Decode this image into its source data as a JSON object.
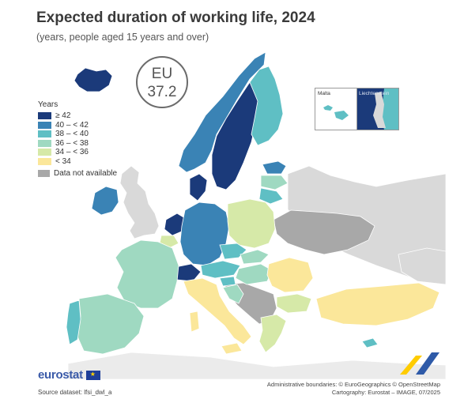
{
  "title": "Expected duration of working life, 2024",
  "subtitle": "(years, people aged 15 years and over)",
  "eu_badge": {
    "label": "EU",
    "value": "37.2"
  },
  "legend": {
    "title": "Years",
    "classes": [
      {
        "label": "≥ 42",
        "color": "#1b3a7a"
      },
      {
        "label": "40 – < 42",
        "color": "#3a83b5"
      },
      {
        "label": "38 – < 40",
        "color": "#5fbfc4"
      },
      {
        "label": "36 – < 38",
        "color": "#9fd9c1"
      },
      {
        "label": "34 – < 36",
        "color": "#d6e9a8"
      },
      {
        "label": "< 34",
        "color": "#fbe79a"
      }
    ],
    "not_available": {
      "label": "Data not available",
      "color": "#a8a8a8"
    }
  },
  "insets": {
    "malta": "Malta",
    "liechtenstein": "Liechtenstein"
  },
  "country_classes": {
    "Iceland": "≥ 42",
    "Norway": "40 – < 42",
    "Sweden": "≥ 42",
    "Finland": "38 – < 40",
    "Denmark": "≥ 42",
    "Netherlands": "≥ 42",
    "Switzerland": "≥ 42",
    "Liechtenstein": "≥ 42",
    "Germany": "40 – < 42",
    "Ireland": "40 – < 42",
    "Estonia": "40 – < 42",
    "Latvia": "36 – < 38",
    "Lithuania": "38 – < 40",
    "Austria": "38 – < 40",
    "Czechia": "38 – < 40",
    "Portugal": "38 – < 40",
    "Malta": "38 – < 40",
    "Slovenia": "38 – < 40",
    "France": "36 – < 38",
    "Spain": "36 – < 38",
    "Cyprus": "38 – < 40",
    "Slovakia": "36 – < 38",
    "Hungary": "36 – < 38",
    "Croatia": "36 – < 38",
    "Belgium": "34 – < 36",
    "Poland": "34 – < 36",
    "Bulgaria": "34 – < 36",
    "Greece": "34 – < 36",
    "Italy": "< 34",
    "Romania": "< 34",
    "Turkey": "< 34",
    "Luxembourg": "34 – < 36"
  },
  "logo": "eurostat",
  "source": "Source dataset: lfsi_dwl_a",
  "credits": [
    "Administrative boundaries: © EuroGeographics © OpenStreetMap",
    "Cartography: Eurostat – IMAGE, 07/2025"
  ]
}
